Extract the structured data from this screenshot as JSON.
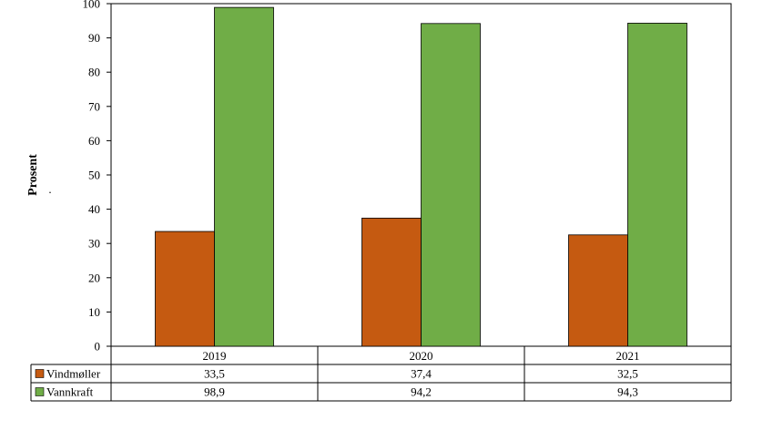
{
  "chart_data": {
    "type": "bar",
    "categories": [
      "2019",
      "2020",
      "2021"
    ],
    "series": [
      {
        "name": "Vindmøller",
        "color": "#c55a11",
        "values": [
          33.5,
          37.4,
          32.5
        ],
        "labels": [
          "33,5",
          "37,4",
          "32,5"
        ]
      },
      {
        "name": "Vannkraft",
        "color": "#70ad47",
        "values": [
          98.9,
          94.2,
          94.3
        ],
        "labels": [
          "98,9",
          "94,2",
          "94,3"
        ]
      }
    ],
    "ylabel": "Prosent",
    "ylabel_note": ".",
    "ylim": [
      0,
      100
    ],
    "yticks": [
      0,
      10,
      20,
      30,
      40,
      50,
      60,
      70,
      80,
      90,
      100
    ],
    "grid": false,
    "legend": "data-table"
  }
}
